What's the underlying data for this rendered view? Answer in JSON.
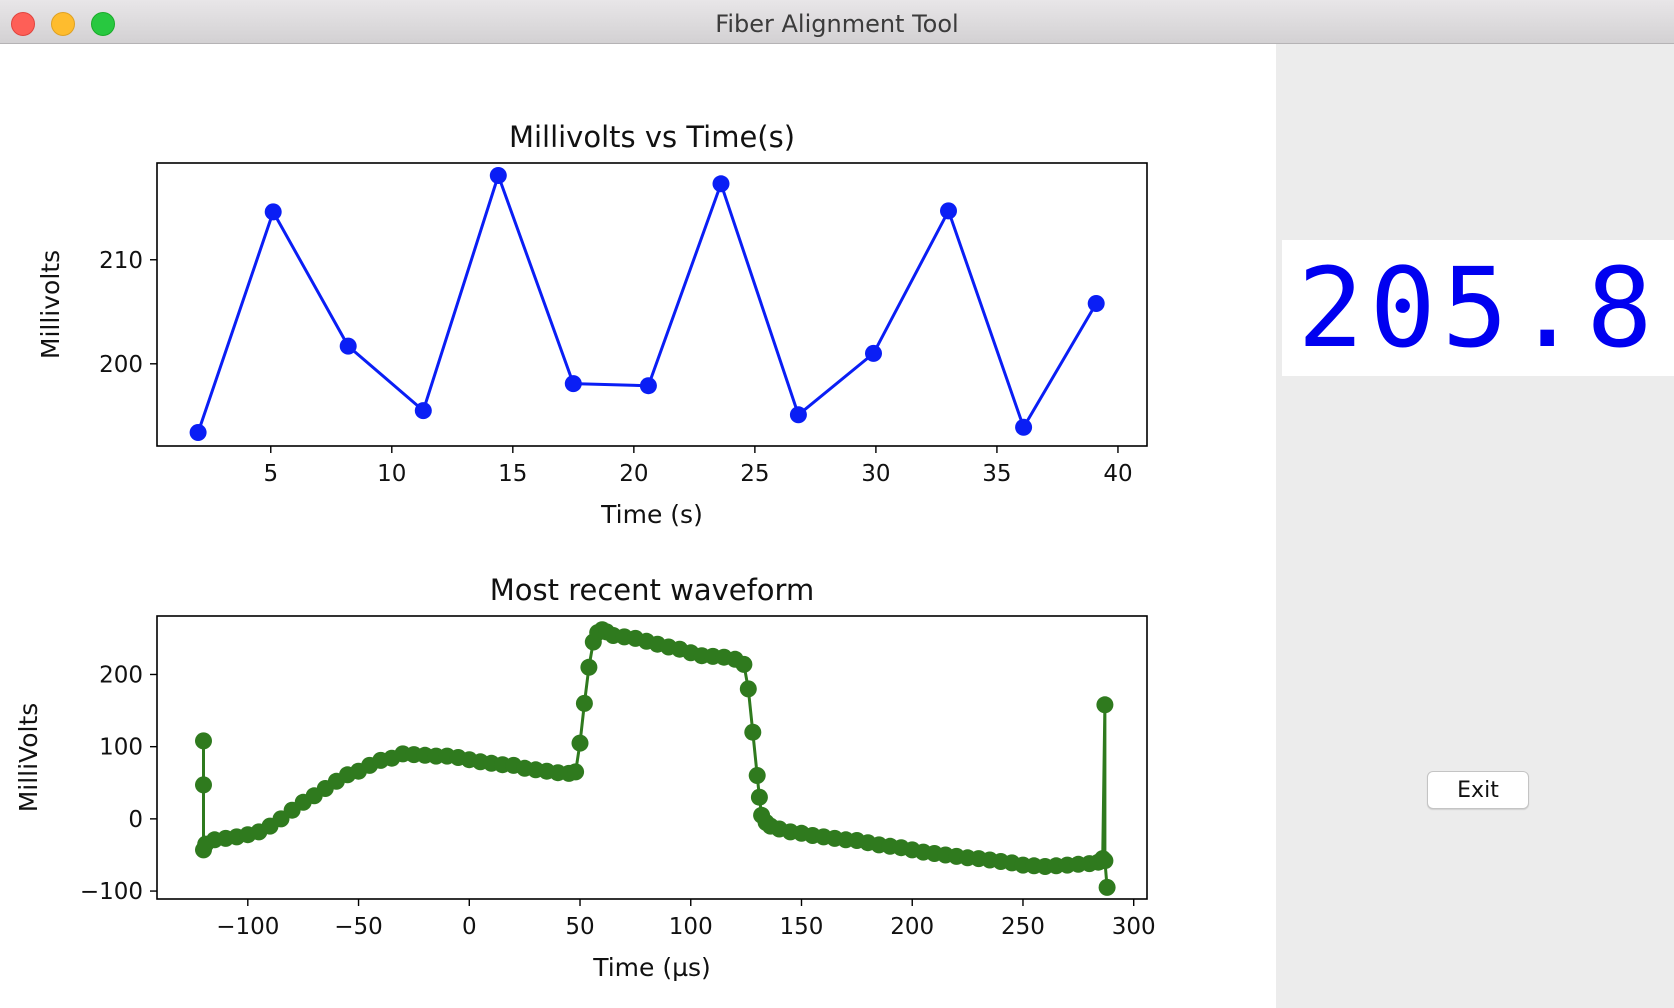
{
  "window": {
    "title": "Fiber Alignment Tool"
  },
  "readout": {
    "value": "205.8",
    "color": "#0000f0"
  },
  "controls": {
    "exit_label": "Exit"
  },
  "chart_data": [
    {
      "type": "line",
      "title": "Millivolts vs Time(s)",
      "xlabel": "Time (s)",
      "ylabel": "Millivolts",
      "color": "#0a1ef5",
      "xlim": [
        0.3,
        41.2
      ],
      "ylim": [
        192.1,
        219.3
      ],
      "xticks": [
        5,
        10,
        15,
        20,
        25,
        30,
        35,
        40
      ],
      "yticks": [
        200,
        210
      ],
      "x": [
        2.0,
        5.1,
        8.2,
        11.3,
        14.4,
        17.5,
        20.6,
        23.6,
        26.8,
        29.9,
        33.0,
        36.1,
        39.1
      ],
      "y": [
        193.4,
        214.6,
        201.7,
        195.5,
        218.1,
        198.1,
        197.9,
        217.3,
        195.1,
        201.0,
        214.7,
        193.9,
        205.8
      ]
    },
    {
      "type": "line",
      "title": "Most recent waveform",
      "xlabel": "Time (µs)",
      "ylabel": "MilliVolts",
      "color": "#2f7a1e",
      "xlim": [
        -141,
        306
      ],
      "ylim": [
        -111,
        281
      ],
      "xticks": [
        -100,
        -50,
        0,
        50,
        100,
        150,
        200,
        250,
        300
      ],
      "xticklabels": [
        "−100",
        "−50",
        "0",
        "50",
        "100",
        "150",
        "200",
        "250",
        "300"
      ],
      "yticks": [
        -100,
        0,
        100,
        200
      ],
      "yticklabels": [
        "−100",
        "0",
        "100",
        "200"
      ],
      "x": [
        -120,
        -120,
        -120,
        -119,
        -115,
        -110,
        -105,
        -100,
        -95,
        -90,
        -85,
        -80,
        -75,
        -70,
        -65,
        -60,
        -55,
        -50,
        -45,
        -40,
        -35,
        -30,
        -25,
        -20,
        -15,
        -10,
        -5,
        0,
        5,
        10,
        15,
        20,
        25,
        30,
        35,
        40,
        45,
        48,
        50,
        52,
        54,
        56,
        58,
        60,
        62,
        65,
        70,
        75,
        80,
        85,
        90,
        95,
        100,
        105,
        110,
        115,
        120,
        124,
        126,
        128,
        130,
        131,
        132,
        134,
        136,
        140,
        145,
        150,
        155,
        160,
        165,
        170,
        175,
        180,
        185,
        190,
        195,
        200,
        205,
        210,
        215,
        220,
        225,
        230,
        235,
        240,
        245,
        250,
        255,
        260,
        265,
        270,
        275,
        280,
        284,
        286,
        287,
        287,
        288
      ],
      "y": [
        108,
        47,
        -43,
        -35,
        -29,
        -27,
        -25,
        -22,
        -18,
        -10,
        0,
        12,
        23,
        32,
        42,
        52,
        61,
        66,
        74,
        81,
        84,
        90,
        89,
        88,
        87,
        87,
        85,
        82,
        79,
        77,
        75,
        74,
        70,
        68,
        66,
        64,
        63,
        65,
        105,
        160,
        210,
        245,
        258,
        262,
        259,
        254,
        252,
        250,
        246,
        242,
        238,
        235,
        230,
        226,
        225,
        224,
        221,
        214,
        180,
        120,
        60,
        30,
        5,
        -5,
        -10,
        -14,
        -18,
        -20,
        -23,
        -25,
        -27,
        -29,
        -30,
        -33,
        -36,
        -38,
        -40,
        -43,
        -46,
        -48,
        -50,
        -52,
        -54,
        -55,
        -57,
        -59,
        -61,
        -64,
        -65,
        -66,
        -65,
        -64,
        -63,
        -62,
        -60,
        -55,
        158,
        -58,
        -95
      ]
    }
  ]
}
